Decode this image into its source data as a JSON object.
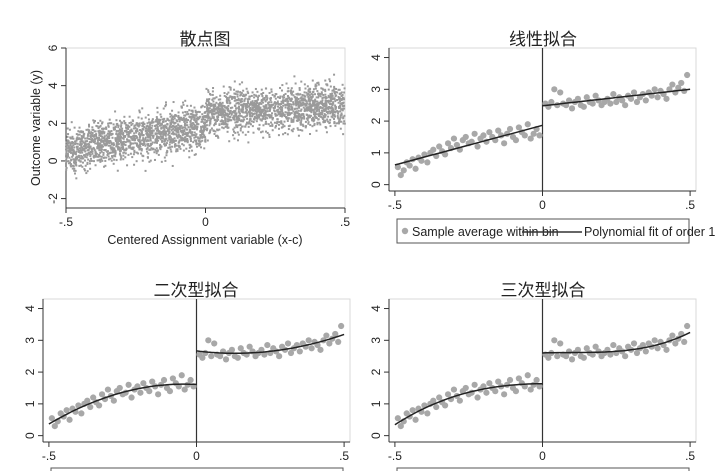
{
  "chart_data": [
    {
      "type": "scatter",
      "title": "散点图",
      "xlabel": "Centered Assignment variable (x-c)",
      "ylabel": "Outcome variable (y)",
      "xlim": [
        -0.5,
        0.5
      ],
      "ylim": [
        -2.5,
        6
      ],
      "x_ticks": [
        -0.5,
        0,
        0.5
      ],
      "x_tick_labels": [
        "-.5",
        "0",
        ".5"
      ],
      "y_ticks": [
        -2,
        0,
        2,
        4,
        6
      ],
      "y_tick_labels": [
        "-2",
        "0",
        "2",
        "4",
        "6"
      ],
      "grid": false,
      "marker_color": "#9a9a9a",
      "n_points_approx": 3000,
      "cutoff": 0,
      "left_mean_at_cutoff": 1.9,
      "right_mean_at_cutoff": 2.5,
      "left_mean_at_min": 0.6,
      "right_mean_at_max": 3.0,
      "spread_sd": 1.0
    },
    {
      "type": "scatter",
      "title": "线性拟合",
      "x_ticks": [
        -0.5,
        0,
        0.5
      ],
      "x_tick_labels": [
        "-.5",
        "0",
        ".5"
      ],
      "y_ticks": [
        0,
        1,
        2,
        3,
        4
      ],
      "y_tick_labels": [
        "0",
        "1",
        "2",
        "3",
        "4"
      ],
      "xlim": [
        -0.52,
        0.52
      ],
      "ylim": [
        -0.2,
        4.3
      ],
      "cutoff": 0,
      "fit_order": 1,
      "left_fit": [
        0.6,
        1.9
      ],
      "right_fit": [
        2.5,
        2.95
      ],
      "legend": [
        "Sample average within bin",
        "Polynomial fit of order 1"
      ],
      "legend_placement": "bottom"
    },
    {
      "type": "scatter",
      "title": "二次型拟合",
      "x_ticks": [
        -0.5,
        0,
        0.5
      ],
      "x_tick_labels": [
        "-.5",
        "0",
        ".5"
      ],
      "y_ticks": [
        0,
        1,
        2,
        3,
        4
      ],
      "y_tick_labels": [
        "0",
        "1",
        "2",
        "3",
        "4"
      ],
      "xlim": [
        -0.52,
        0.52
      ],
      "ylim": [
        -0.2,
        4.3
      ],
      "cutoff": 0,
      "fit_order": 2
    },
    {
      "type": "scatter",
      "title": "三次型拟合",
      "x_ticks": [
        -0.5,
        0,
        0.5
      ],
      "x_tick_labels": [
        "-.5",
        "0",
        ".5"
      ],
      "y_ticks": [
        0,
        1,
        2,
        3,
        4
      ],
      "y_tick_labels": [
        "0",
        "1",
        "2",
        "3",
        "4"
      ],
      "xlim": [
        -0.52,
        0.52
      ],
      "ylim": [
        -0.2,
        4.3
      ],
      "cutoff": 0,
      "fit_order": 3
    }
  ],
  "binned_series": {
    "name": "Sample average within bin",
    "marker_color": "#a8a8a8",
    "x": [
      -0.49,
      -0.48,
      -0.47,
      -0.46,
      -0.45,
      -0.44,
      -0.43,
      -0.42,
      -0.41,
      -0.4,
      -0.39,
      -0.38,
      -0.37,
      -0.36,
      -0.35,
      -0.34,
      -0.33,
      -0.32,
      -0.31,
      -0.3,
      -0.29,
      -0.28,
      -0.27,
      -0.26,
      -0.25,
      -0.24,
      -0.23,
      -0.22,
      -0.21,
      -0.2,
      -0.19,
      -0.18,
      -0.17,
      -0.16,
      -0.15,
      -0.14,
      -0.13,
      -0.12,
      -0.11,
      -0.1,
      -0.09,
      -0.08,
      -0.07,
      -0.06,
      -0.05,
      -0.04,
      -0.03,
      -0.02,
      -0.01,
      0.01,
      0.02,
      0.03,
      0.04,
      0.05,
      0.06,
      0.07,
      0.08,
      0.09,
      0.1,
      0.11,
      0.12,
      0.13,
      0.14,
      0.15,
      0.16,
      0.17,
      0.18,
      0.19,
      0.2,
      0.21,
      0.22,
      0.23,
      0.24,
      0.25,
      0.26,
      0.27,
      0.28,
      0.29,
      0.3,
      0.31,
      0.32,
      0.33,
      0.34,
      0.35,
      0.36,
      0.37,
      0.38,
      0.39,
      0.4,
      0.41,
      0.42,
      0.43,
      0.44,
      0.45,
      0.46,
      0.47,
      0.48,
      0.49
    ],
    "y": [
      0.55,
      0.3,
      0.45,
      0.7,
      0.6,
      0.8,
      0.5,
      0.85,
      0.75,
      0.95,
      0.7,
      1.0,
      1.1,
      0.9,
      1.2,
      1.05,
      0.95,
      1.3,
      1.15,
      1.45,
      1.25,
      1.1,
      1.4,
      1.5,
      1.3,
      1.35,
      1.6,
      1.2,
      1.45,
      1.55,
      1.35,
      1.65,
      1.5,
      1.4,
      1.7,
      1.55,
      1.3,
      1.6,
      1.75,
      1.5,
      1.4,
      1.8,
      1.65,
      1.55,
      1.9,
      1.45,
      1.6,
      1.75,
      1.55,
      2.55,
      2.45,
      2.6,
      3.0,
      2.5,
      2.9,
      2.55,
      2.5,
      2.65,
      2.4,
      2.6,
      2.7,
      2.5,
      2.45,
      2.75,
      2.6,
      2.55,
      2.8,
      2.65,
      2.5,
      2.6,
      2.7,
      2.55,
      2.85,
      2.6,
      2.75,
      2.65,
      2.5,
      2.8,
      2.7,
      2.9,
      2.6,
      2.75,
      2.85,
      2.65,
      2.9,
      2.8,
      3.0,
      2.75,
      2.95,
      2.85,
      2.7,
      3.0,
      3.15,
      2.9,
      3.05,
      3.2,
      2.95,
      3.45
    ]
  }
}
